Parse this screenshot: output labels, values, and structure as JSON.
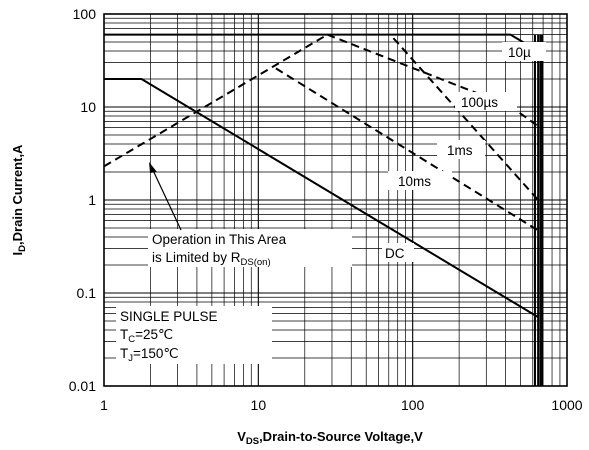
{
  "chart_data": {
    "type": "line",
    "x_scale": "log",
    "y_scale": "log",
    "xlim": [
      1,
      1000
    ],
    "ylim": [
      0.01,
      100
    ],
    "grid": true,
    "x_ticks": [
      "1",
      "10",
      "100",
      "1000"
    ],
    "y_ticks": [
      "0.01",
      "0.1",
      "1",
      "10",
      "100"
    ],
    "xlabel": {
      "main": "V",
      "sub": "DS",
      "rest": ",Drain-to-Source Voltage,V"
    },
    "ylabel": {
      "main": "I",
      "sub": "D",
      "rest": ",Drain Current,A"
    },
    "series": [
      {
        "name": "10µ",
        "style": "solid",
        "x": [
          1,
          430,
          650
        ],
        "y": [
          60,
          60,
          40
        ]
      },
      {
        "name": "100µs",
        "style": "dashed",
        "x": [
          28,
          430,
          650
        ],
        "y": [
          60,
          10.2,
          6.2
        ]
      },
      {
        "name": "1ms",
        "style": "dashed",
        "x": [
          75,
          650
        ],
        "y": [
          55,
          1.0
        ]
      },
      {
        "name": "10ms",
        "style": "dashed",
        "x": [
          13,
          650
        ],
        "y": [
          26,
          0.47
        ]
      },
      {
        "name": "DC",
        "style": "solid",
        "x": [
          1,
          1.75,
          650
        ],
        "y": [
          20,
          20,
          0.055
        ]
      },
      {
        "name": "Rds(on) limit",
        "style": "dashed",
        "x": [
          1,
          28
        ],
        "y": [
          2.3,
          60
        ]
      }
    ],
    "vertical_lines_x": [
      620,
      650,
      672,
      690
    ],
    "annotations": {
      "limit_line1": "Operation in This Area",
      "limit_line2_main": "is Limited by R",
      "limit_line2_sub": "DS(on)",
      "pulse": "SINGLE PULSE",
      "tc_main": "T",
      "tc_sub": "C",
      "tc_rest": "=25℃",
      "tj_main": "T",
      "tj_sub": "J",
      "tj_rest": "=150℃"
    }
  }
}
